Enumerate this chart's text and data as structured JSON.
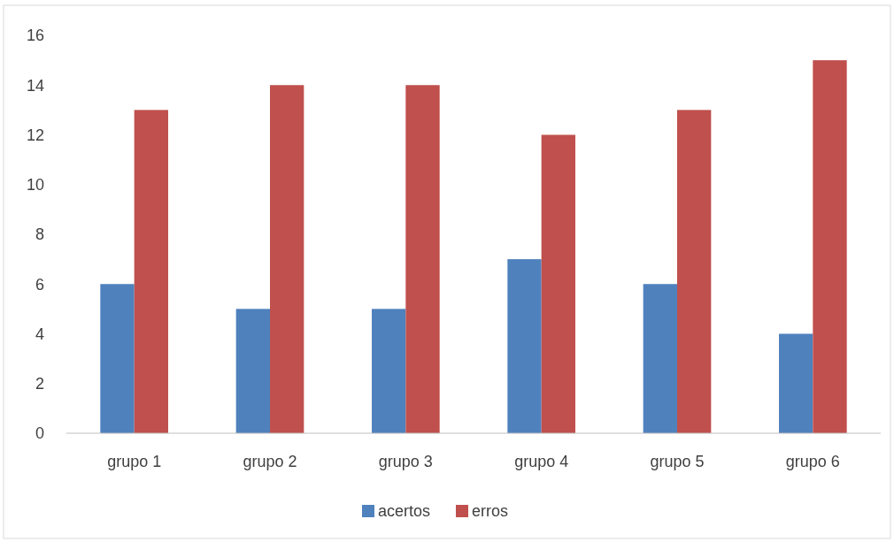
{
  "chart_data": {
    "type": "bar",
    "categories": [
      "grupo 1",
      "grupo 2",
      "grupo 3",
      "grupo 4",
      "grupo 5",
      "grupo 6"
    ],
    "series": [
      {
        "name": "acertos",
        "color": "#4f81bd",
        "values": [
          6,
          5,
          5,
          7,
          6,
          4
        ]
      },
      {
        "name": "erros",
        "color": "#c0504d",
        "values": [
          13,
          14,
          14,
          12,
          13,
          15
        ]
      }
    ],
    "ylim": [
      0,
      16
    ],
    "yticks": [
      0,
      2,
      4,
      6,
      8,
      10,
      12,
      14,
      16
    ],
    "grid": false,
    "legend": "bottom"
  }
}
